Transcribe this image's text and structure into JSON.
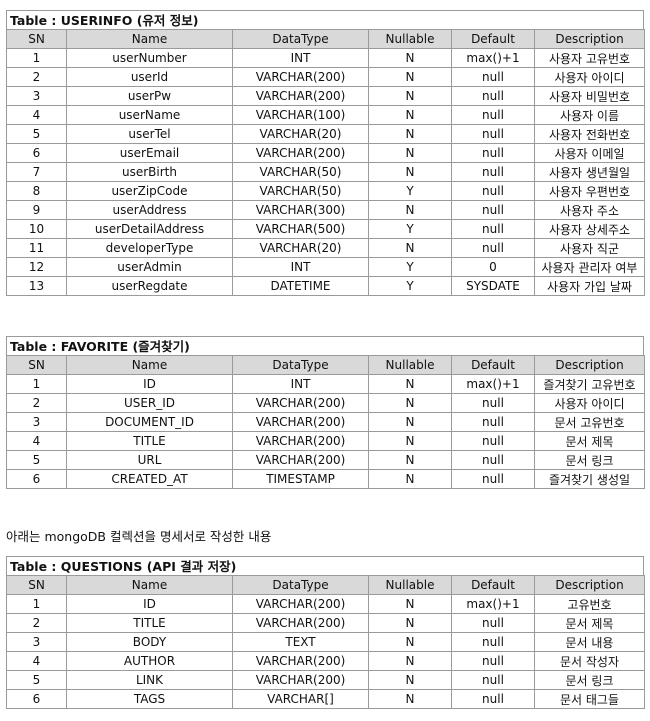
{
  "headers": [
    "SN",
    "Name",
    "DataType",
    "Nullable",
    "Default",
    "Description"
  ],
  "tables": [
    {
      "title": "Table : USERINFO (유저 정보)",
      "rows": [
        [
          "1",
          "userNumber",
          "INT",
          "N",
          "max()+1",
          "사용자 고유번호"
        ],
        [
          "2",
          "userId",
          "VARCHAR(200)",
          "N",
          "null",
          "사용자 아이디"
        ],
        [
          "3",
          "userPw",
          "VARCHAR(200)",
          "N",
          "null",
          "사용자 비밀번호"
        ],
        [
          "4",
          "userName",
          "VARCHAR(100)",
          "N",
          "null",
          "사용자 이름"
        ],
        [
          "5",
          "userTel",
          "VARCHAR(20)",
          "N",
          "null",
          "사용자 전화번호"
        ],
        [
          "6",
          "userEmail",
          "VARCHAR(200)",
          "N",
          "null",
          "사용자 이메일"
        ],
        [
          "7",
          "userBirth",
          "VARCHAR(50)",
          "N",
          "null",
          "사용자 생년월일"
        ],
        [
          "8",
          "userZipCode",
          "VARCHAR(50)",
          "Y",
          "null",
          "사용자 우편번호"
        ],
        [
          "9",
          "userAddress",
          "VARCHAR(300)",
          "N",
          "null",
          "사용자 주소"
        ],
        [
          "10",
          "userDetailAddress",
          "VARCHAR(500)",
          "Y",
          "null",
          "사용자 상세주소"
        ],
        [
          "11",
          "developerType",
          "VARCHAR(20)",
          "N",
          "null",
          "사용자 직군"
        ],
        [
          "12",
          "userAdmin",
          "INT",
          "Y",
          "0",
          "사용자 관리자 여부"
        ],
        [
          "13",
          "userRegdate",
          "DATETIME",
          "Y",
          "SYSDATE",
          "사용자 가입 날짜"
        ]
      ]
    },
    {
      "title": "Table : FAVORITE (즐겨찾기)",
      "rows": [
        [
          "1",
          "ID",
          "INT",
          "N",
          "max()+1",
          "즐겨찾기 고유번호"
        ],
        [
          "2",
          "USER_ID",
          "VARCHAR(200)",
          "N",
          "null",
          "사용자 아이디"
        ],
        [
          "3",
          "DOCUMENT_ID",
          "VARCHAR(200)",
          "N",
          "null",
          "문서 고유번호"
        ],
        [
          "4",
          "TITLE",
          "VARCHAR(200)",
          "N",
          "null",
          "문서 제목"
        ],
        [
          "5",
          "URL",
          "VARCHAR(200)",
          "N",
          "null",
          "문서 링크"
        ],
        [
          "6",
          "CREATED_AT",
          "TIMESTAMP",
          "N",
          "null",
          "즐겨찾기 생성일"
        ]
      ]
    },
    {
      "title": "Table : QUESTIONS (API 결과 저장)",
      "rows": [
        [
          "1",
          "ID",
          "VARCHAR(200)",
          "N",
          "max()+1",
          "고유번호"
        ],
        [
          "2",
          "TITLE",
          "VARCHAR(200)",
          "N",
          "null",
          "문서 제목"
        ],
        [
          "3",
          "BODY",
          "TEXT",
          "N",
          "null",
          "문서 내용"
        ],
        [
          "4",
          "AUTHOR",
          "VARCHAR(200)",
          "N",
          "null",
          "문서 작성자"
        ],
        [
          "5",
          "LINK",
          "VARCHAR(200)",
          "N",
          "null",
          "문서 링크"
        ],
        [
          "6",
          "TAGS",
          "VARCHAR[]",
          "N",
          "null",
          "문서 태그들"
        ]
      ]
    }
  ],
  "note": "아래는 mongoDB 컬렉션을 명세서로 작성한 내용"
}
